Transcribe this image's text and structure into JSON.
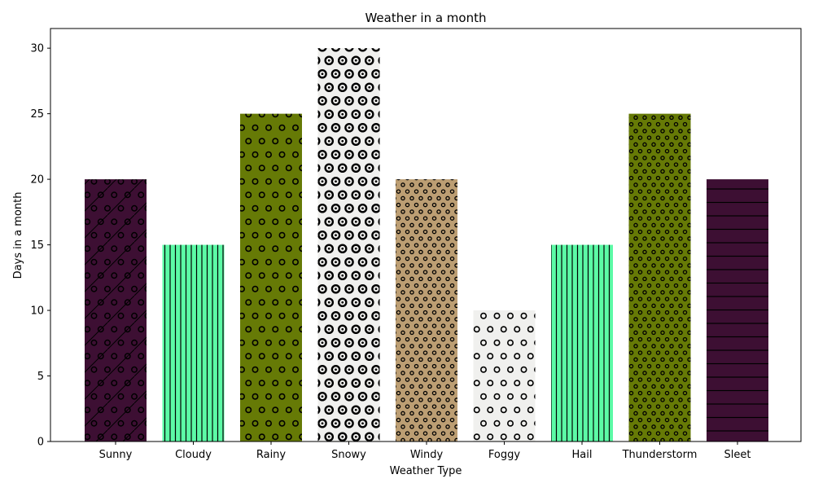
{
  "chart_data": {
    "type": "bar",
    "title": "Weather in a month",
    "xlabel": "Weather Type",
    "ylabel": "Days in a month",
    "categories": [
      "Sunny",
      "Cloudy",
      "Rainy",
      "Snowy",
      "Windy",
      "Foggy",
      "Hail",
      "Thunderstorm",
      "Sleet"
    ],
    "values": [
      20,
      15,
      25,
      30,
      20,
      10,
      15,
      25,
      20
    ],
    "colors": [
      "#3d0f33",
      "#5cfaa6",
      "#667a06",
      "#f0f0ee",
      "#bc9e73",
      "#f0f0ee",
      "#5cfaa6",
      "#667a06",
      "#3d0f33"
    ],
    "hatches": [
      "diagonal-circles",
      "vertical",
      "circles",
      "rings",
      "small-circles",
      "circles",
      "vertical",
      "small-circles",
      "horizontal"
    ],
    "ylim": [
      0,
      31.5
    ],
    "yticks": [
      0,
      5,
      10,
      15,
      20,
      25,
      30
    ],
    "grid": false,
    "legend": "none"
  }
}
